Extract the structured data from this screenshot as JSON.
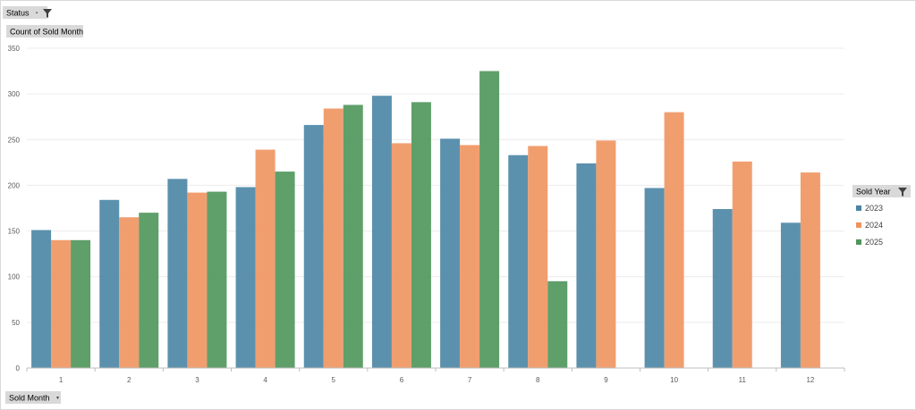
{
  "filters": {
    "status_label": "Status",
    "value_label": "Count of Sold Month",
    "axis_label": "Sold Month",
    "legend_label": "Sold Year"
  },
  "chart_data": {
    "type": "bar",
    "categories": [
      "1",
      "2",
      "3",
      "4",
      "5",
      "6",
      "7",
      "8",
      "9",
      "10",
      "11",
      "12"
    ],
    "series": [
      {
        "name": "2023",
        "color": "#4a85a5",
        "values": [
          151,
          184,
          207,
          198,
          266,
          298,
          251,
          233,
          224,
          197,
          174,
          159
        ]
      },
      {
        "name": "2024",
        "color": "#f0945f",
        "values": [
          140,
          165,
          192,
          239,
          284,
          246,
          244,
          243,
          249,
          280,
          226,
          214
        ]
      },
      {
        "name": "2025",
        "color": "#4e955a",
        "values": [
          140,
          170,
          193,
          215,
          288,
          291,
          325,
          95,
          null,
          null,
          null,
          null
        ]
      }
    ],
    "ylim": [
      0,
      350
    ],
    "yticks": [
      0,
      50,
      100,
      150,
      200,
      250,
      300,
      350
    ],
    "grid": true,
    "legend_position": "right"
  }
}
